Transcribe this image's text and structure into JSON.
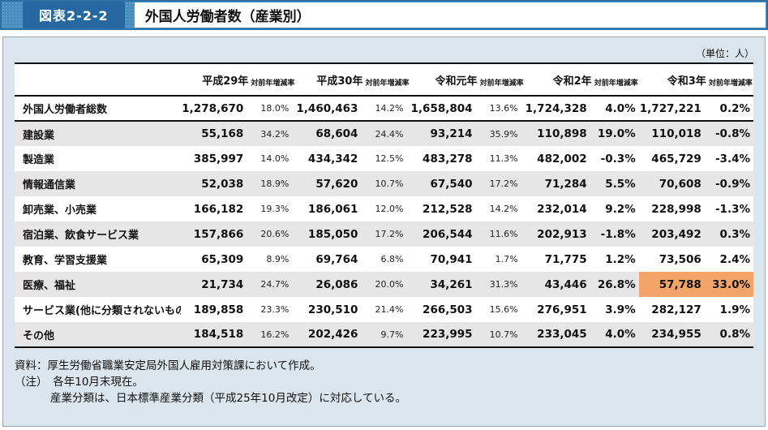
{
  "figure": {
    "label": "図表2-2-2",
    "title": "外国人労働者数（産業別）"
  },
  "unit_label": "（単位：人）",
  "table": {
    "year_columns": [
      {
        "year": "平成29年",
        "rate_header": "対前年増減率"
      },
      {
        "year": "平成30年",
        "rate_header": "対前年増減率"
      },
      {
        "year": "令和元年",
        "rate_header": "対前年増減率"
      },
      {
        "year": "令和2年",
        "rate_header": "対前年増減率"
      },
      {
        "year": "令和3年",
        "rate_header": "対前年増減率"
      }
    ],
    "rows": [
      {
        "label": "外国人労働者総数",
        "total": true,
        "values": [
          "1,278,670",
          "18.0%",
          "1,460,463",
          "14.2%",
          "1,658,804",
          "13.6%",
          "1,724,328",
          "4.0%",
          "1,727,221",
          "0.2%"
        ]
      },
      {
        "label": "建設業",
        "values": [
          "55,168",
          "34.2%",
          "68,604",
          "24.4%",
          "93,214",
          "35.9%",
          "110,898",
          "19.0%",
          "110,018",
          "-0.8%"
        ]
      },
      {
        "label": "製造業",
        "values": [
          "385,997",
          "14.0%",
          "434,342",
          "12.5%",
          "483,278",
          "11.3%",
          "482,002",
          "-0.3%",
          "465,729",
          "-3.4%"
        ]
      },
      {
        "label": "情報通信業",
        "values": [
          "52,038",
          "18.9%",
          "57,620",
          "10.7%",
          "67,540",
          "17.2%",
          "71,284",
          "5.5%",
          "70,608",
          "-0.9%"
        ]
      },
      {
        "label": "卸売業、小売業",
        "values": [
          "166,182",
          "19.3%",
          "186,061",
          "12.0%",
          "212,528",
          "14.2%",
          "232,014",
          "9.2%",
          "228,998",
          "-1.3%"
        ]
      },
      {
        "label": "宿泊業、飲食サービス業",
        "values": [
          "157,866",
          "20.6%",
          "185,050",
          "17.2%",
          "206,544",
          "11.6%",
          "202,913",
          "-1.8%",
          "203,492",
          "0.3%"
        ]
      },
      {
        "label": "教育、学習支援業",
        "values": [
          "65,309",
          "8.9%",
          "69,764",
          "6.8%",
          "70,941",
          "1.7%",
          "71,775",
          "1.2%",
          "73,506",
          "2.4%"
        ]
      },
      {
        "label": "医療、福祉",
        "highlight_last_two": true,
        "values": [
          "21,734",
          "24.7%",
          "26,086",
          "20.0%",
          "34,261",
          "31.3%",
          "43,446",
          "26.8%",
          "57,788",
          "33.0%"
        ]
      },
      {
        "label": "サービス業(他に分類されないもの)",
        "values": [
          "189,858",
          "23.3%",
          "230,510",
          "21.4%",
          "266,503",
          "15.6%",
          "276,951",
          "3.9%",
          "282,127",
          "1.9%"
        ]
      },
      {
        "label": "その他",
        "values": [
          "184,518",
          "16.2%",
          "202,426",
          "9.7%",
          "223,995",
          "10.7%",
          "233,045",
          "4.0%",
          "234,955",
          "0.8%"
        ]
      }
    ]
  },
  "notes": {
    "source": "資料：厚生労働省職業安定局外国人雇用対策課において作成。",
    "note_label": "（注）　",
    "note1": "各年10月末現在。",
    "note2": "産業分類は、日本標準産業分類（平成25年10月改定）に対応している。"
  },
  "colors": {
    "bar_blue": "#478dbf",
    "label_box_blue": "#26689f",
    "bar_border_blue": "#2e6fa4",
    "panel_bg": "#dae5ed",
    "panel_border": "#98a6b0",
    "row_alt_gray": "#e6e6e6",
    "highlight_orange": "#f5a469"
  }
}
